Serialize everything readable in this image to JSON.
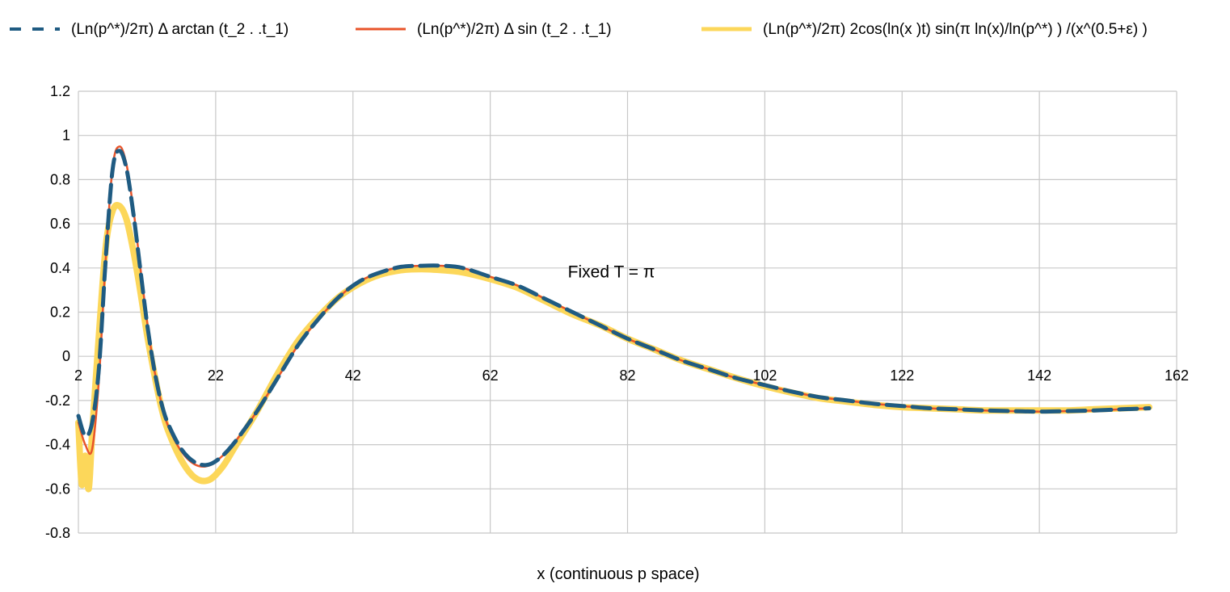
{
  "chart_data": {
    "type": "line",
    "title": "",
    "xlabel": "x (continuous p space)",
    "ylabel": "",
    "xlim": [
      2,
      162
    ],
    "ylim": [
      -0.8,
      1.2
    ],
    "x_ticks": [
      2,
      22,
      42,
      62,
      82,
      102,
      122,
      142,
      162
    ],
    "x_tick_labels": [
      "2",
      "22",
      "42",
      "62",
      "82",
      "102",
      "122",
      "142",
      "162"
    ],
    "y_ticks": [
      -0.8,
      -0.6,
      -0.4,
      -0.2,
      0,
      0.2,
      0.4,
      0.6,
      0.8,
      1,
      1.2
    ],
    "y_tick_labels": [
      "-0.8",
      "-0.6",
      "-0.4",
      "-0.2",
      "0",
      "0.2",
      "0.4",
      "0.6",
      "0.8",
      "1",
      "1.2"
    ],
    "grid": true,
    "legend_position": "top",
    "annotation": {
      "text": "Fixed T = π",
      "x": 82,
      "y": 0.35
    },
    "series": [
      {
        "name": "(Ln(p^*)/2π) Δ arctan (t_2 . .t_1)",
        "color": "#1f5b82",
        "style": "dashed",
        "x": [
          2,
          3,
          4,
          5,
          6,
          7,
          8,
          9,
          10,
          11,
          12,
          13,
          14,
          15,
          17,
          19,
          21,
          23,
          25,
          28,
          31,
          34,
          37,
          40,
          43,
          46,
          49,
          52,
          55,
          58,
          62,
          66,
          70,
          74,
          78,
          82,
          86,
          90,
          94,
          98,
          102,
          106,
          110,
          114,
          118,
          122,
          126,
          130,
          134,
          138,
          142,
          146,
          150,
          154,
          158
        ],
        "y": [
          -0.27,
          -0.36,
          -0.3,
          -0.05,
          0.45,
          0.85,
          0.93,
          0.85,
          0.65,
          0.4,
          0.15,
          -0.05,
          -0.2,
          -0.3,
          -0.42,
          -0.48,
          -0.49,
          -0.45,
          -0.38,
          -0.25,
          -0.1,
          0.05,
          0.17,
          0.27,
          0.34,
          0.38,
          0.405,
          0.41,
          0.41,
          0.4,
          0.36,
          0.32,
          0.26,
          0.2,
          0.14,
          0.08,
          0.03,
          -0.02,
          -0.06,
          -0.1,
          -0.13,
          -0.16,
          -0.185,
          -0.2,
          -0.215,
          -0.225,
          -0.235,
          -0.24,
          -0.245,
          -0.248,
          -0.25,
          -0.248,
          -0.245,
          -0.24,
          -0.235
        ]
      },
      {
        "name": "(Ln(p^*)/2π) Δ sin (t_2 . .t_1)",
        "color": "#e8542a",
        "style": "solid",
        "x": [
          2,
          3,
          4,
          5,
          6,
          7,
          8,
          9,
          10,
          11,
          12,
          13,
          14,
          15,
          17,
          19,
          21,
          23,
          25,
          28,
          31,
          34,
          37,
          40,
          43,
          46,
          49,
          52,
          55,
          58,
          62,
          66,
          70,
          74,
          78,
          82,
          86,
          90,
          94,
          98,
          102,
          106,
          110,
          114,
          118,
          122,
          126,
          130,
          134,
          138,
          142,
          146,
          150,
          154,
          158
        ],
        "y": [
          -0.3,
          -0.4,
          -0.42,
          -0.1,
          0.45,
          0.86,
          0.95,
          0.87,
          0.67,
          0.41,
          0.16,
          -0.05,
          -0.2,
          -0.31,
          -0.43,
          -0.49,
          -0.495,
          -0.45,
          -0.38,
          -0.25,
          -0.1,
          0.05,
          0.17,
          0.27,
          0.34,
          0.38,
          0.405,
          0.41,
          0.41,
          0.4,
          0.36,
          0.32,
          0.26,
          0.2,
          0.14,
          0.08,
          0.03,
          -0.02,
          -0.06,
          -0.1,
          -0.13,
          -0.16,
          -0.185,
          -0.2,
          -0.215,
          -0.225,
          -0.235,
          -0.24,
          -0.245,
          -0.248,
          -0.25,
          -0.248,
          -0.245,
          -0.24,
          -0.235
        ]
      },
      {
        "name": "(Ln(p^*)/2π) 2cos(ln(x )t) sin(π ln(x)/ln(p^*)   ) /(x^(0.5+ε)   )",
        "color": "#fcd75a",
        "style": "solid",
        "x": [
          2,
          2.5,
          3,
          3.5,
          4,
          5,
          6,
          7,
          8,
          9,
          10,
          11,
          12,
          13,
          14,
          15,
          17,
          19,
          21,
          23,
          25,
          28,
          31,
          34,
          37,
          40,
          43,
          46,
          49,
          52,
          55,
          58,
          62,
          66,
          70,
          74,
          78,
          82,
          86,
          90,
          94,
          98,
          102,
          106,
          110,
          114,
          118,
          122,
          126,
          130,
          134,
          138,
          142,
          146,
          150,
          154,
          158
        ],
        "y": [
          -0.3,
          -0.58,
          -0.45,
          -0.6,
          -0.35,
          0.1,
          0.5,
          0.66,
          0.68,
          0.62,
          0.48,
          0.3,
          0.1,
          -0.07,
          -0.22,
          -0.33,
          -0.47,
          -0.55,
          -0.56,
          -0.5,
          -0.4,
          -0.25,
          -0.08,
          0.07,
          0.18,
          0.27,
          0.33,
          0.37,
          0.39,
          0.395,
          0.39,
          0.38,
          0.35,
          0.31,
          0.25,
          0.19,
          0.14,
          0.08,
          0.03,
          -0.02,
          -0.06,
          -0.1,
          -0.135,
          -0.165,
          -0.19,
          -0.205,
          -0.22,
          -0.23,
          -0.235,
          -0.24,
          -0.245,
          -0.245,
          -0.245,
          -0.245,
          -0.24,
          -0.235,
          -0.23
        ]
      }
    ]
  }
}
